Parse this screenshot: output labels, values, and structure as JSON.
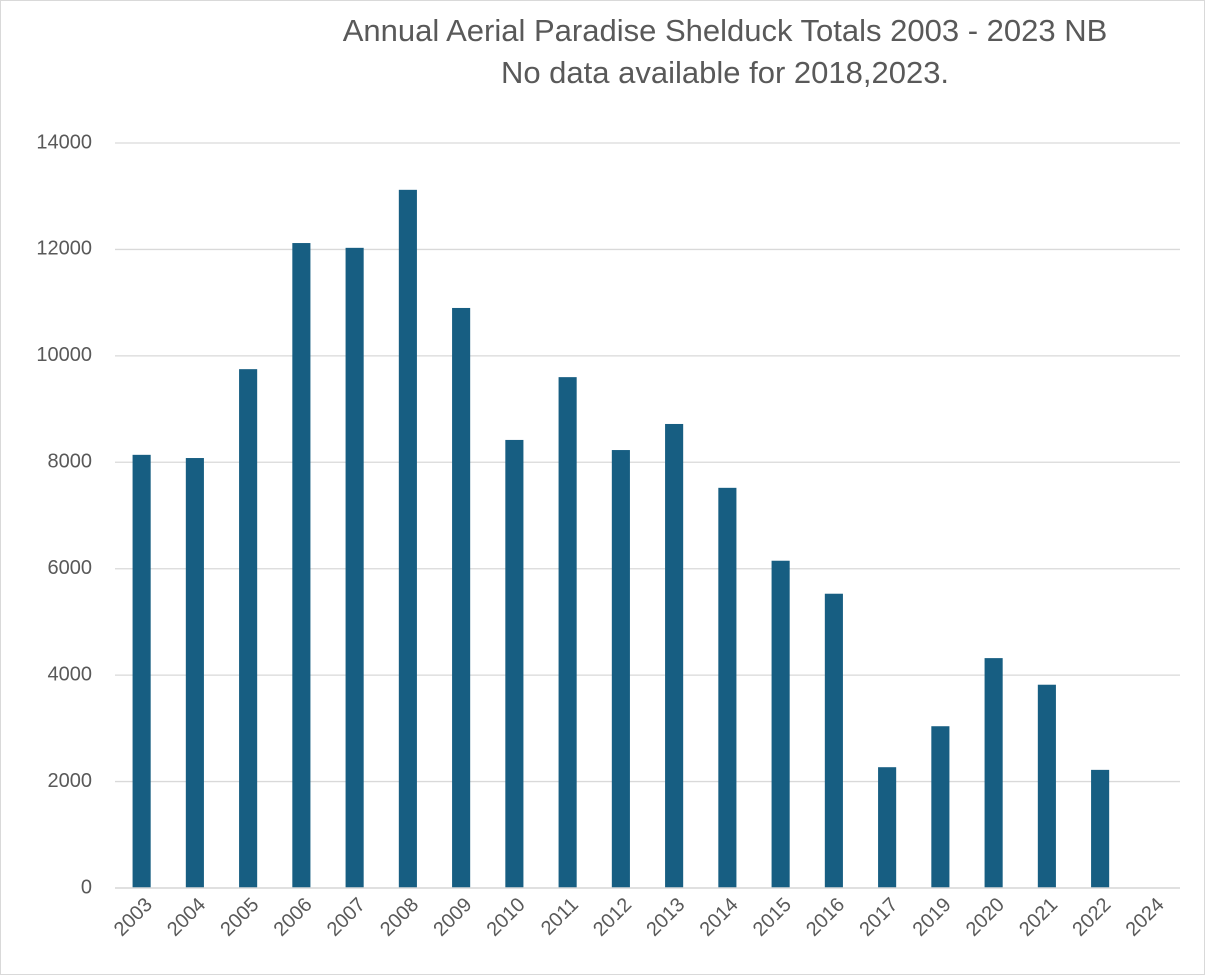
{
  "chart_data": {
    "type": "bar",
    "title": "Annual Aerial Paradise Shelduck Totals 2003 - 2023 NB",
    "subtitle": "No data available for 2018,2023.",
    "categories": [
      "2003",
      "2004",
      "2005",
      "2006",
      "2007",
      "2008",
      "2009",
      "2010",
      "2011",
      "2012",
      "2013",
      "2014",
      "2015",
      "2016",
      "2017",
      "2019",
      "2020",
      "2021",
      "2022",
      "2024"
    ],
    "values": [
      8140,
      8080,
      9750,
      12120,
      12030,
      13120,
      10900,
      8420,
      9600,
      8230,
      8720,
      7520,
      6150,
      5530,
      2270,
      3040,
      4320,
      3820,
      2220,
      null
    ],
    "color": "#175e82",
    "ylim": [
      0,
      14000
    ],
    "yticks": [
      0,
      2000,
      4000,
      6000,
      8000,
      10000,
      12000,
      14000
    ],
    "grid": true
  }
}
